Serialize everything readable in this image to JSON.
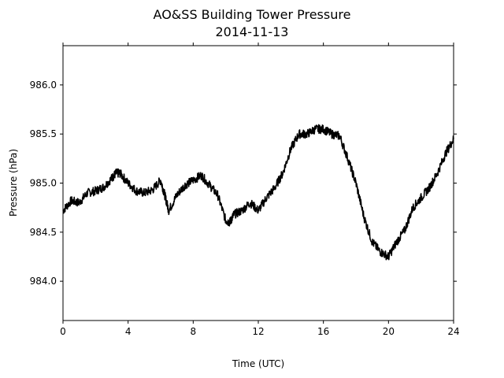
{
  "chart_data": {
    "type": "line",
    "title": "AO&SS Building Tower Pressure",
    "subtitle": "2014-11-13",
    "xlabel": "Time (UTC)",
    "ylabel": "Pressure (hPa)",
    "xlim": [
      0,
      24
    ],
    "ylim": [
      983.6,
      986.4
    ],
    "xticks": [
      0,
      4,
      8,
      12,
      16,
      20,
      24
    ],
    "yticks": [
      984.0,
      984.5,
      985.0,
      985.5,
      986.0
    ],
    "ytick_labels": [
      "984.0",
      "984.5",
      "985.0",
      "985.5",
      "986.0"
    ],
    "grid": false,
    "series": [
      {
        "color": "#000000",
        "x": [
          0,
          0.5,
          1,
          1.5,
          2,
          2.5,
          3,
          3.25,
          3.5,
          4,
          4.5,
          5,
          5.5,
          6,
          6.25,
          6.5,
          7,
          7.5,
          8,
          8.5,
          9,
          9.5,
          10,
          10.25,
          10.5,
          11,
          11.5,
          12,
          12.5,
          13,
          13.5,
          14,
          14.5,
          15,
          15.5,
          16,
          16.5,
          17,
          17.5,
          18,
          18.5,
          19,
          19.5,
          20,
          20.5,
          21,
          21.5,
          22,
          22.5,
          23,
          23.5,
          24
        ],
        "y": [
          984.72,
          984.82,
          984.8,
          984.9,
          984.92,
          984.96,
          985.05,
          985.1,
          985.1,
          985.0,
          984.92,
          984.9,
          984.93,
          985.03,
          984.88,
          984.72,
          984.88,
          984.98,
          985.03,
          985.08,
          984.98,
          984.88,
          984.62,
          984.6,
          984.68,
          984.72,
          984.8,
          984.72,
          984.85,
          984.95,
          985.1,
          985.35,
          985.5,
          985.5,
          985.55,
          985.55,
          985.5,
          985.48,
          985.25,
          985.0,
          984.65,
          984.4,
          984.3,
          984.25,
          984.4,
          984.52,
          984.75,
          984.85,
          984.95,
          985.1,
          985.3,
          985.45
        ]
      }
    ]
  }
}
